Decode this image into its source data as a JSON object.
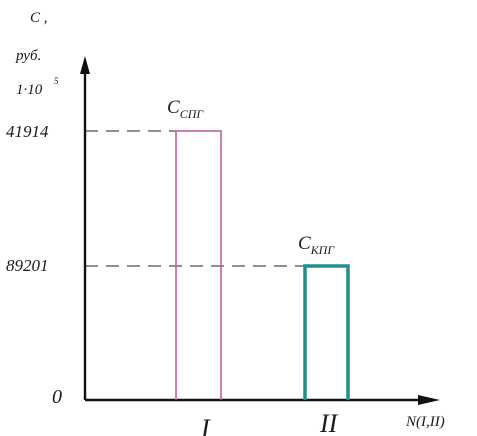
{
  "chart_data": {
    "type": "bar",
    "y_axis": {
      "label_lines": [
        "С ,",
        "руб.",
        "1·10"
      ],
      "exponent": "5"
    },
    "x_axis": {
      "label": "N(I,II)"
    },
    "origin_label": "0",
    "ticks": [
      {
        "label": "41914",
        "level": "high"
      },
      {
        "label": "89201",
        "level": "low"
      }
    ],
    "categories": [
      "I",
      "II"
    ],
    "bars": [
      {
        "category": "I",
        "name": "С",
        "sub": "СПГ",
        "value_label": "41914",
        "color": "#c2569c"
      },
      {
        "category": "II",
        "name": "С",
        "sub": "КПГ",
        "value_label": "89201",
        "color": "#1f8f8a"
      }
    ],
    "grid": false,
    "legend": "none"
  }
}
